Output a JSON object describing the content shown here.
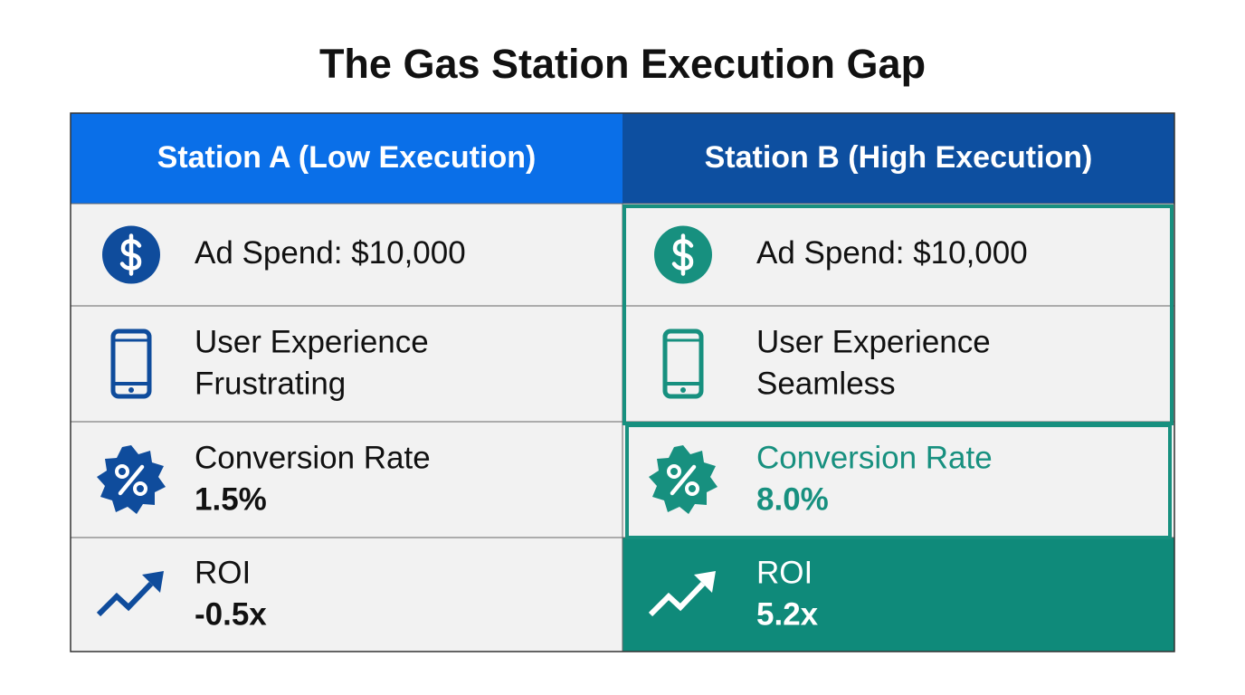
{
  "title": "The Gas Station Execution Gap",
  "table": {
    "columns": [
      "Station A (Low Execution)",
      "Station B (High Execution)"
    ],
    "rows": [
      [
        {
          "label": "Ad Spend: $10,000"
        },
        {
          "label": "Ad Spend: $10,000"
        }
      ],
      [
        {
          "label": "User Experience",
          "value": "Frustrating"
        },
        {
          "label": "User Experience",
          "value": "Seamless"
        }
      ],
      [
        {
          "label": "Conversion Rate",
          "value": "1.5%"
        },
        {
          "label": "Conversion Rate",
          "value": "8.0%"
        }
      ],
      [
        {
          "label": "ROI",
          "value": "-0.5x"
        },
        {
          "label": "ROI",
          "value": "5.2x"
        }
      ]
    ]
  }
}
